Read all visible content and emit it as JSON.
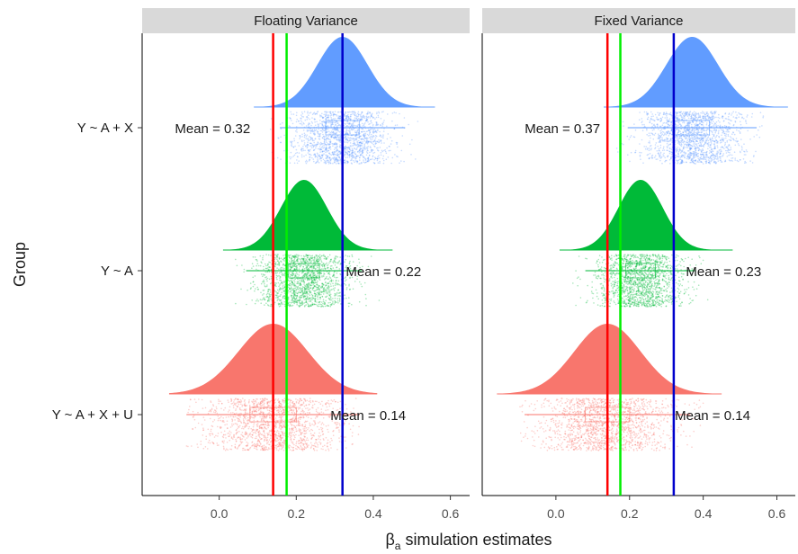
{
  "chart_data": {
    "type": "raincloud",
    "xlabel_main": "β",
    "xlabel_sub": "a",
    "xlabel_rest": " simulation estimates",
    "ylabel": "Group",
    "xlim": [
      -0.2,
      0.65
    ],
    "x_ticks": [
      0.0,
      0.2,
      0.4,
      0.6
    ],
    "x_tick_labels": [
      "0.0",
      "0.2",
      "0.4",
      "0.6"
    ],
    "groups": [
      "Y ~ A + X",
      "Y ~ A",
      "Y ~ A + X + U"
    ],
    "colors": {
      "Y ~ A + X": "#619CFF",
      "Y ~ A": "#00BA38",
      "Y ~ A + X + U": "#F8766D"
    },
    "reference_lines": [
      {
        "x": 0.14,
        "color": "#FF0000"
      },
      {
        "x": 0.175,
        "color": "#00EE00"
      },
      {
        "x": 0.32,
        "color": "#0000CC"
      }
    ],
    "panels": [
      {
        "title": "Floating Variance",
        "series": [
          {
            "group": "Y ~ A + X",
            "mean": 0.32,
            "mean_label": "Mean = 0.32",
            "sd": 0.065,
            "min": 0.09,
            "max": 0.56,
            "label_side": "left"
          },
          {
            "group": "Y ~ A",
            "mean": 0.22,
            "mean_label": "Mean = 0.22",
            "sd": 0.06,
            "min": 0.01,
            "max": 0.45,
            "label_side": "right"
          },
          {
            "group": "Y ~ A + X + U",
            "mean": 0.14,
            "mean_label": "Mean = 0.14",
            "sd": 0.09,
            "min": -0.13,
            "max": 0.41,
            "label_side": "right"
          }
        ]
      },
      {
        "title": "Fixed Variance",
        "series": [
          {
            "group": "Y ~ A + X",
            "mean": 0.37,
            "mean_label": "Mean = 0.37",
            "sd": 0.07,
            "min": 0.13,
            "max": 0.63,
            "label_side": "left"
          },
          {
            "group": "Y ~ A",
            "mean": 0.23,
            "mean_label": "Mean = 0.23",
            "sd": 0.06,
            "min": 0.01,
            "max": 0.48,
            "label_side": "right"
          },
          {
            "group": "Y ~ A + X + U",
            "mean": 0.14,
            "mean_label": "Mean = 0.14",
            "sd": 0.09,
            "min": -0.16,
            "max": 0.45,
            "label_side": "right"
          }
        ]
      }
    ]
  }
}
